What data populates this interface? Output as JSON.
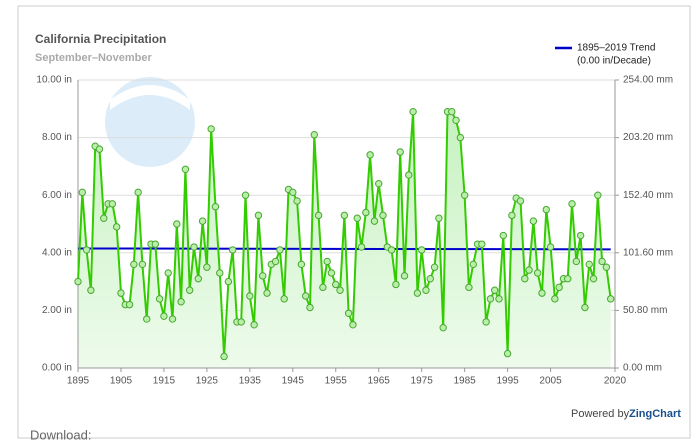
{
  "chart_data": {
    "type": "line",
    "title": "California Precipitation",
    "subtitle": "September–November",
    "x": [
      1895,
      1896,
      1897,
      1898,
      1899,
      1900,
      1901,
      1902,
      1903,
      1904,
      1905,
      1906,
      1907,
      1908,
      1909,
      1910,
      1911,
      1912,
      1913,
      1914,
      1915,
      1916,
      1917,
      1918,
      1919,
      1920,
      1921,
      1922,
      1923,
      1924,
      1925,
      1926,
      1927,
      1928,
      1929,
      1930,
      1931,
      1932,
      1933,
      1934,
      1935,
      1936,
      1937,
      1938,
      1939,
      1940,
      1941,
      1942,
      1943,
      1944,
      1945,
      1946,
      1947,
      1948,
      1949,
      1950,
      1951,
      1952,
      1953,
      1954,
      1955,
      1956,
      1957,
      1958,
      1959,
      1960,
      1961,
      1962,
      1963,
      1964,
      1965,
      1966,
      1967,
      1968,
      1969,
      1970,
      1971,
      1972,
      1973,
      1974,
      1975,
      1976,
      1977,
      1978,
      1979,
      1980,
      1981,
      1982,
      1983,
      1984,
      1985,
      1986,
      1987,
      1988,
      1989,
      1990,
      1991,
      1992,
      1993,
      1994,
      1995,
      1996,
      1997,
      1998,
      1999,
      2000,
      2001,
      2002,
      2003,
      2004,
      2005,
      2006,
      2007,
      2008,
      2009,
      2010,
      2011,
      2012,
      2013,
      2014,
      2015,
      2016,
      2017,
      2018,
      2019
    ],
    "series": [
      {
        "color": "#33cc00",
        "values": [
          3.0,
          6.1,
          4.1,
          2.7,
          7.7,
          7.6,
          5.2,
          5.7,
          5.7,
          4.9,
          2.6,
          2.2,
          2.2,
          3.6,
          6.1,
          3.6,
          1.7,
          4.3,
          4.3,
          2.4,
          1.8,
          3.3,
          1.7,
          5.0,
          2.3,
          6.9,
          2.7,
          4.2,
          3.1,
          5.1,
          3.5,
          8.3,
          5.6,
          3.3,
          0.4,
          3.0,
          4.1,
          1.6,
          1.6,
          6.0,
          2.5,
          1.5,
          5.3,
          3.2,
          2.6,
          3.6,
          3.7,
          4.1,
          2.4,
          6.2,
          6.1,
          5.8,
          3.6,
          2.5,
          2.1,
          8.1,
          5.3,
          2.8,
          3.7,
          3.3,
          2.9,
          2.7,
          5.3,
          1.9,
          1.5,
          5.2,
          4.2,
          5.4,
          7.4,
          5.1,
          6.4,
          5.3,
          4.2,
          4.1,
          2.9,
          7.5,
          3.2,
          6.7,
          8.9,
          2.6,
          4.1,
          2.7,
          3.1,
          3.5,
          5.2,
          1.4,
          8.9,
          8.9,
          8.6,
          8.0,
          6.0,
          2.8,
          3.6,
          4.3,
          4.3,
          1.6,
          2.4,
          2.7,
          2.4,
          4.6,
          0.5,
          5.3,
          5.9,
          5.8,
          3.1,
          3.4,
          5.1,
          3.3,
          2.6,
          5.5,
          4.2,
          2.4,
          2.8,
          3.1,
          3.1,
          5.7,
          3.7,
          4.6,
          2.1,
          3.6,
          3.1,
          6.0,
          3.7,
          3.5,
          2.4
        ]
      },
      {
        "name": "1895–2019 Trend",
        "label": "(0.00 in/Decade)",
        "color": "#0000cc",
        "x": [
          1895,
          2019
        ],
        "values": [
          4.15,
          4.12
        ]
      }
    ],
    "xlim": [
      1895,
      2020
    ],
    "xticks": [
      1895,
      1905,
      1915,
      1925,
      1935,
      1945,
      1955,
      1965,
      1975,
      1985,
      1995,
      2005,
      2020
    ],
    "ylim": [
      0,
      10
    ],
    "yticks": [
      {
        "value": 0,
        "label": "0.00 in"
      },
      {
        "value": 2,
        "label": "2.00 in"
      },
      {
        "value": 4,
        "label": "4.00 in"
      },
      {
        "value": 6,
        "label": "6.00 in"
      },
      {
        "value": 8,
        "label": "8.00 in"
      },
      {
        "value": 10,
        "label": "10.00 in"
      }
    ],
    "y2lim": [
      0,
      254
    ],
    "y2ticks": [
      {
        "value": 0,
        "label": "0.00 mm"
      },
      {
        "value": 50.8,
        "label": "50.80 mm"
      },
      {
        "value": 101.6,
        "label": "101.60 mm"
      },
      {
        "value": 152.4,
        "label": "152.40 mm"
      },
      {
        "value": 203.2,
        "label": "203.20 mm"
      },
      {
        "value": 254,
        "label": "254.00 mm"
      }
    ],
    "grid": true,
    "legend": "top-right",
    "footer": {
      "prefix": "Powered by",
      "brand": "ZingChart",
      "download": "Download:"
    }
  }
}
